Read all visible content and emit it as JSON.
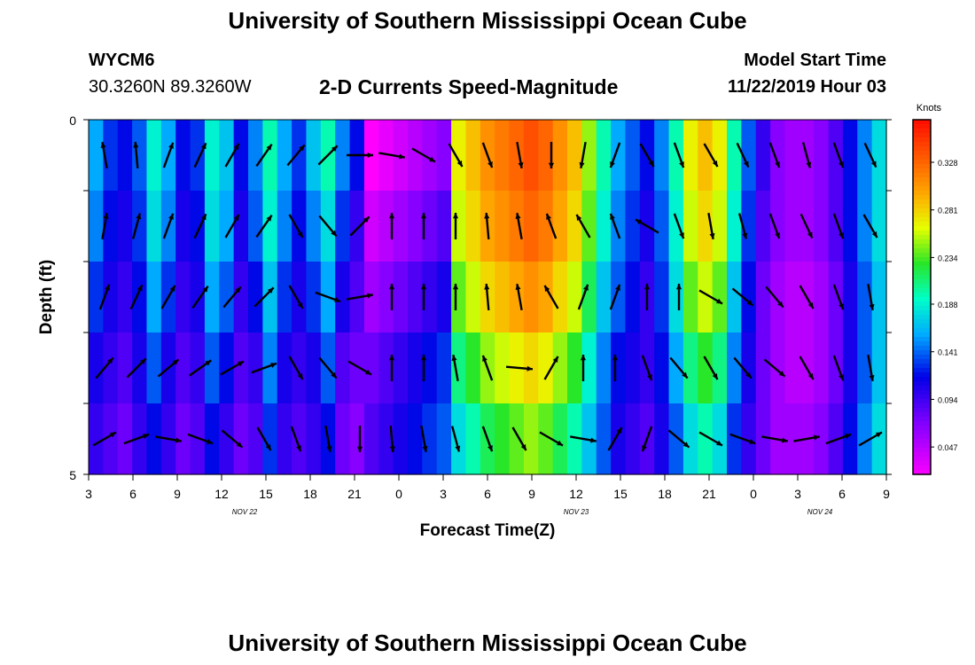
{
  "page": {
    "title_top": "University of Southern Mississippi Ocean Cube",
    "title_bottom": "University of Southern Mississippi Ocean Cube",
    "station": "WYCM6",
    "location": "30.3260N 89.3260W",
    "plot_title": "2-D Currents Speed-Magnitude",
    "model_label": "Model Start Time",
    "model_time": "11/22/2019 Hour 03"
  },
  "chart_data": {
    "type": "heatmap",
    "title": "2-D Currents Speed-Magnitude",
    "xlabel": "Forecast Time(Z)",
    "ylabel": "Depth (ft)",
    "ylim": [
      0,
      5
    ],
    "y_ticks": [
      "0",
      "5"
    ],
    "x_ticks": [
      "3",
      "6",
      "9",
      "12",
      "15",
      "18",
      "21",
      "0",
      "3",
      "6",
      "9",
      "12",
      "15",
      "18",
      "21",
      "0",
      "3",
      "6",
      "9"
    ],
    "date_labels": [
      "NOV 22",
      "NOV 23",
      "NOV 24"
    ],
    "colorbar": {
      "unit": "Knots",
      "ticks": [
        "0.328",
        "0.281",
        "0.234",
        "0.188",
        "0.141",
        "0.094",
        "0.047"
      ]
    },
    "hours": 55,
    "depth_rows": 5,
    "speed_grid_knots": [
      [
        0.16,
        0.13,
        0.12,
        0.14,
        0.19,
        0.16,
        0.12,
        0.13,
        0.19,
        0.17,
        0.12,
        0.15,
        0.2,
        0.16,
        0.13,
        0.17,
        0.2,
        0.15,
        0.12,
        0.02,
        0.03,
        0.04,
        0.05,
        0.06,
        0.07,
        0.27,
        0.29,
        0.31,
        0.32,
        0.33,
        0.34,
        0.33,
        0.31,
        0.29,
        0.25,
        0.2,
        0.16,
        0.14,
        0.12,
        0.15,
        0.2,
        0.27,
        0.29,
        0.27,
        0.2,
        0.14,
        0.1,
        0.07,
        0.06,
        0.06,
        0.07,
        0.09,
        0.12,
        0.15,
        0.18
      ],
      [
        0.15,
        0.12,
        0.11,
        0.13,
        0.18,
        0.15,
        0.11,
        0.12,
        0.18,
        0.16,
        0.11,
        0.14,
        0.19,
        0.15,
        0.12,
        0.15,
        0.18,
        0.13,
        0.1,
        0.04,
        0.05,
        0.06,
        0.07,
        0.08,
        0.09,
        0.26,
        0.28,
        0.3,
        0.31,
        0.32,
        0.33,
        0.32,
        0.3,
        0.28,
        0.24,
        0.19,
        0.15,
        0.13,
        0.11,
        0.14,
        0.19,
        0.26,
        0.28,
        0.26,
        0.19,
        0.13,
        0.09,
        0.07,
        0.06,
        0.06,
        0.07,
        0.09,
        0.12,
        0.15,
        0.18
      ],
      [
        0.13,
        0.11,
        0.1,
        0.12,
        0.16,
        0.13,
        0.1,
        0.11,
        0.16,
        0.14,
        0.1,
        0.12,
        0.17,
        0.13,
        0.11,
        0.13,
        0.16,
        0.11,
        0.09,
        0.06,
        0.07,
        0.08,
        0.09,
        0.1,
        0.11,
        0.24,
        0.26,
        0.28,
        0.29,
        0.3,
        0.31,
        0.3,
        0.28,
        0.26,
        0.22,
        0.17,
        0.14,
        0.12,
        0.1,
        0.13,
        0.18,
        0.24,
        0.26,
        0.24,
        0.17,
        0.12,
        0.08,
        0.06,
        0.05,
        0.05,
        0.06,
        0.08,
        0.11,
        0.14,
        0.17
      ],
      [
        0.11,
        0.1,
        0.09,
        0.11,
        0.14,
        0.11,
        0.09,
        0.1,
        0.14,
        0.12,
        0.09,
        0.1,
        0.15,
        0.11,
        0.1,
        0.11,
        0.14,
        0.09,
        0.08,
        0.08,
        0.09,
        0.1,
        0.11,
        0.12,
        0.13,
        0.21,
        0.23,
        0.25,
        0.26,
        0.27,
        0.28,
        0.27,
        0.25,
        0.23,
        0.19,
        0.15,
        0.12,
        0.11,
        0.1,
        0.12,
        0.16,
        0.21,
        0.23,
        0.21,
        0.15,
        0.11,
        0.08,
        0.06,
        0.05,
        0.05,
        0.06,
        0.08,
        0.11,
        0.14,
        0.17
      ],
      [
        0.1,
        0.09,
        0.08,
        0.1,
        0.12,
        0.1,
        0.08,
        0.09,
        0.12,
        0.1,
        0.08,
        0.09,
        0.13,
        0.1,
        0.09,
        0.1,
        0.12,
        0.08,
        0.07,
        0.09,
        0.1,
        0.11,
        0.12,
        0.13,
        0.14,
        0.18,
        0.2,
        0.22,
        0.23,
        0.24,
        0.25,
        0.24,
        0.22,
        0.2,
        0.17,
        0.14,
        0.11,
        0.1,
        0.09,
        0.11,
        0.14,
        0.18,
        0.2,
        0.18,
        0.13,
        0.1,
        0.08,
        0.06,
        0.06,
        0.06,
        0.07,
        0.09,
        0.12,
        0.15,
        0.18
      ]
    ],
    "arrow_dirs_deg": [
      [
        350,
        355,
        20,
        25,
        30,
        35,
        40,
        45,
        90,
        100,
        120,
        150,
        160,
        170,
        180,
        190,
        200,
        150,
        160,
        150,
        155,
        160,
        165,
        160,
        155
      ],
      [
        10,
        15,
        20,
        25,
        30,
        35,
        150,
        140,
        45,
        0,
        0,
        0,
        355,
        350,
        340,
        330,
        340,
        300,
        160,
        170,
        165,
        160,
        155,
        160,
        150
      ],
      [
        20,
        25,
        30,
        35,
        40,
        45,
        150,
        110,
        80,
        0,
        0,
        0,
        355,
        350,
        330,
        20,
        20,
        0,
        0,
        120,
        130,
        140,
        150,
        160,
        170
      ],
      [
        40,
        45,
        50,
        55,
        60,
        70,
        150,
        140,
        120,
        0,
        0,
        350,
        340,
        95,
        30,
        0,
        0,
        160,
        140,
        150,
        140,
        130,
        150,
        160,
        170
      ],
      [
        60,
        70,
        100,
        110,
        130,
        150,
        160,
        170,
        180,
        175,
        170,
        165,
        160,
        150,
        120,
        100,
        30,
        200,
        130,
        120,
        110,
        100,
        80,
        70,
        60
      ]
    ]
  }
}
